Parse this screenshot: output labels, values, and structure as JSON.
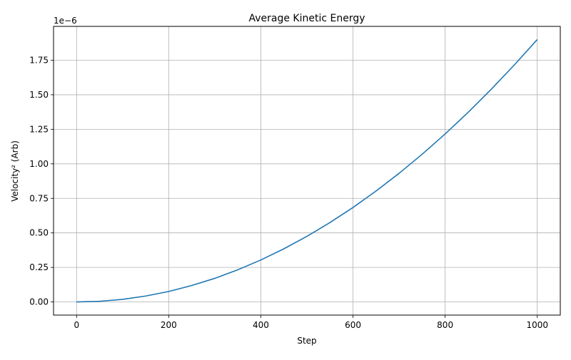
{
  "chart_data": {
    "type": "line",
    "title": "Average Kinetic Energy",
    "xlabel": "Step",
    "ylabel": "Velocity² (Arb)",
    "y_offset_label": "1e−6",
    "xlim": [
      -50,
      1050
    ],
    "ylim": [
      -0.095,
      1.995
    ],
    "x_ticks": [
      0,
      200,
      400,
      600,
      800,
      1000
    ],
    "x_tick_labels": [
      "0",
      "200",
      "400",
      "600",
      "800",
      "1000"
    ],
    "y_ticks": [
      0.0,
      0.25,
      0.5,
      0.75,
      1.0,
      1.25,
      1.5,
      1.75
    ],
    "y_tick_labels": [
      "0.00",
      "0.25",
      "0.50",
      "0.75",
      "1.00",
      "1.25",
      "1.50",
      "1.75"
    ],
    "grid": true,
    "legend": "none",
    "series": [
      {
        "color": "#1f77b4",
        "x": [
          0,
          50,
          100,
          150,
          200,
          250,
          300,
          350,
          400,
          450,
          500,
          550,
          600,
          650,
          700,
          750,
          800,
          850,
          900,
          950,
          1000
        ],
        "values": [
          0.0,
          0.005,
          0.019,
          0.043,
          0.076,
          0.119,
          0.171,
          0.233,
          0.304,
          0.385,
          0.475,
          0.575,
          0.684,
          0.803,
          0.931,
          1.069,
          1.216,
          1.373,
          1.539,
          1.715,
          1.9
        ]
      }
    ]
  }
}
